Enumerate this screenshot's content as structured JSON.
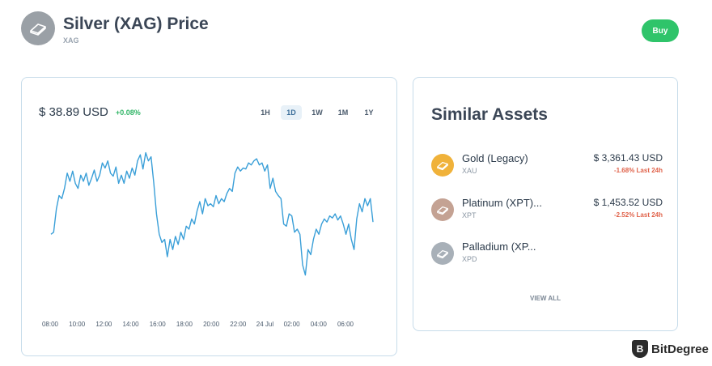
{
  "header": {
    "title": "Silver (XAG) Price",
    "symbol": "XAG",
    "buy_label": "Buy",
    "logo_color": "#9aa0a6"
  },
  "price_card": {
    "price": "$ 38.89 USD",
    "change": "+0.08%",
    "change_color": "#30b566",
    "ranges": [
      "1H",
      "1D",
      "1W",
      "1M",
      "1Y"
    ],
    "active_range": "1D"
  },
  "chart_data": {
    "type": "line",
    "x_ticks": [
      "08:00",
      "10:00",
      "12:00",
      "14:00",
      "16:00",
      "18:00",
      "20:00",
      "22:00",
      "24 Jul",
      "02:00",
      "04:00",
      "06:00"
    ],
    "series": [
      {
        "color": "#3a9fd8",
        "values": [
          0.1,
          0.12,
          0.35,
          0.48,
          0.45,
          0.55,
          0.7,
          0.62,
          0.72,
          0.6,
          0.55,
          0.68,
          0.62,
          0.7,
          0.58,
          0.65,
          0.73,
          0.62,
          0.68,
          0.8,
          0.75,
          0.82,
          0.7,
          0.67,
          0.76,
          0.6,
          0.68,
          0.6,
          0.72,
          0.65,
          0.75,
          0.68,
          0.82,
          0.88,
          0.74,
          0.9,
          0.82,
          0.86,
          0.6,
          0.3,
          0.1,
          0.02,
          0.05,
          -0.12,
          0.05,
          -0.05,
          0.08,
          0.0,
          0.12,
          0.05,
          0.18,
          0.15,
          0.25,
          0.2,
          0.33,
          0.42,
          0.3,
          0.45,
          0.38,
          0.4,
          0.37,
          0.48,
          0.4,
          0.45,
          0.42,
          0.5,
          0.55,
          0.52,
          0.7,
          0.76,
          0.72,
          0.75,
          0.74,
          0.8,
          0.78,
          0.82,
          0.84,
          0.78,
          0.8,
          0.72,
          0.78,
          0.55,
          0.65,
          0.52,
          0.48,
          0.45,
          0.2,
          0.18,
          0.3,
          0.28,
          0.12,
          0.15,
          0.1,
          -0.2,
          -0.3,
          -0.05,
          -0.1,
          0.05,
          0.15,
          0.1,
          0.2,
          0.25,
          0.22,
          0.28,
          0.26,
          0.3,
          0.24,
          0.28,
          0.2,
          0.1,
          0.2,
          0.05,
          -0.05,
          0.25,
          0.4,
          0.32,
          0.45,
          0.38,
          0.45,
          0.22
        ]
      }
    ]
  },
  "similar_assets": {
    "title": "Similar Assets",
    "items": [
      {
        "name": "Gold (Legacy)",
        "symbol": "XAU",
        "price": "$ 3,361.43 USD",
        "change": "-1.68% Last 24h",
        "color": "#f0b23a"
      },
      {
        "name": "Platinum (XPT)...",
        "symbol": "XPT",
        "price": "$ 1,453.52 USD",
        "change": "-2.52% Last 24h",
        "color": "#c4a293"
      },
      {
        "name": "Palladium (XP...",
        "symbol": "XPD",
        "color": "#a8b0b8"
      }
    ],
    "view_all": "VIEW ALL",
    "negative_color": "#e0624a"
  },
  "brand": {
    "name": "BitDegree"
  }
}
